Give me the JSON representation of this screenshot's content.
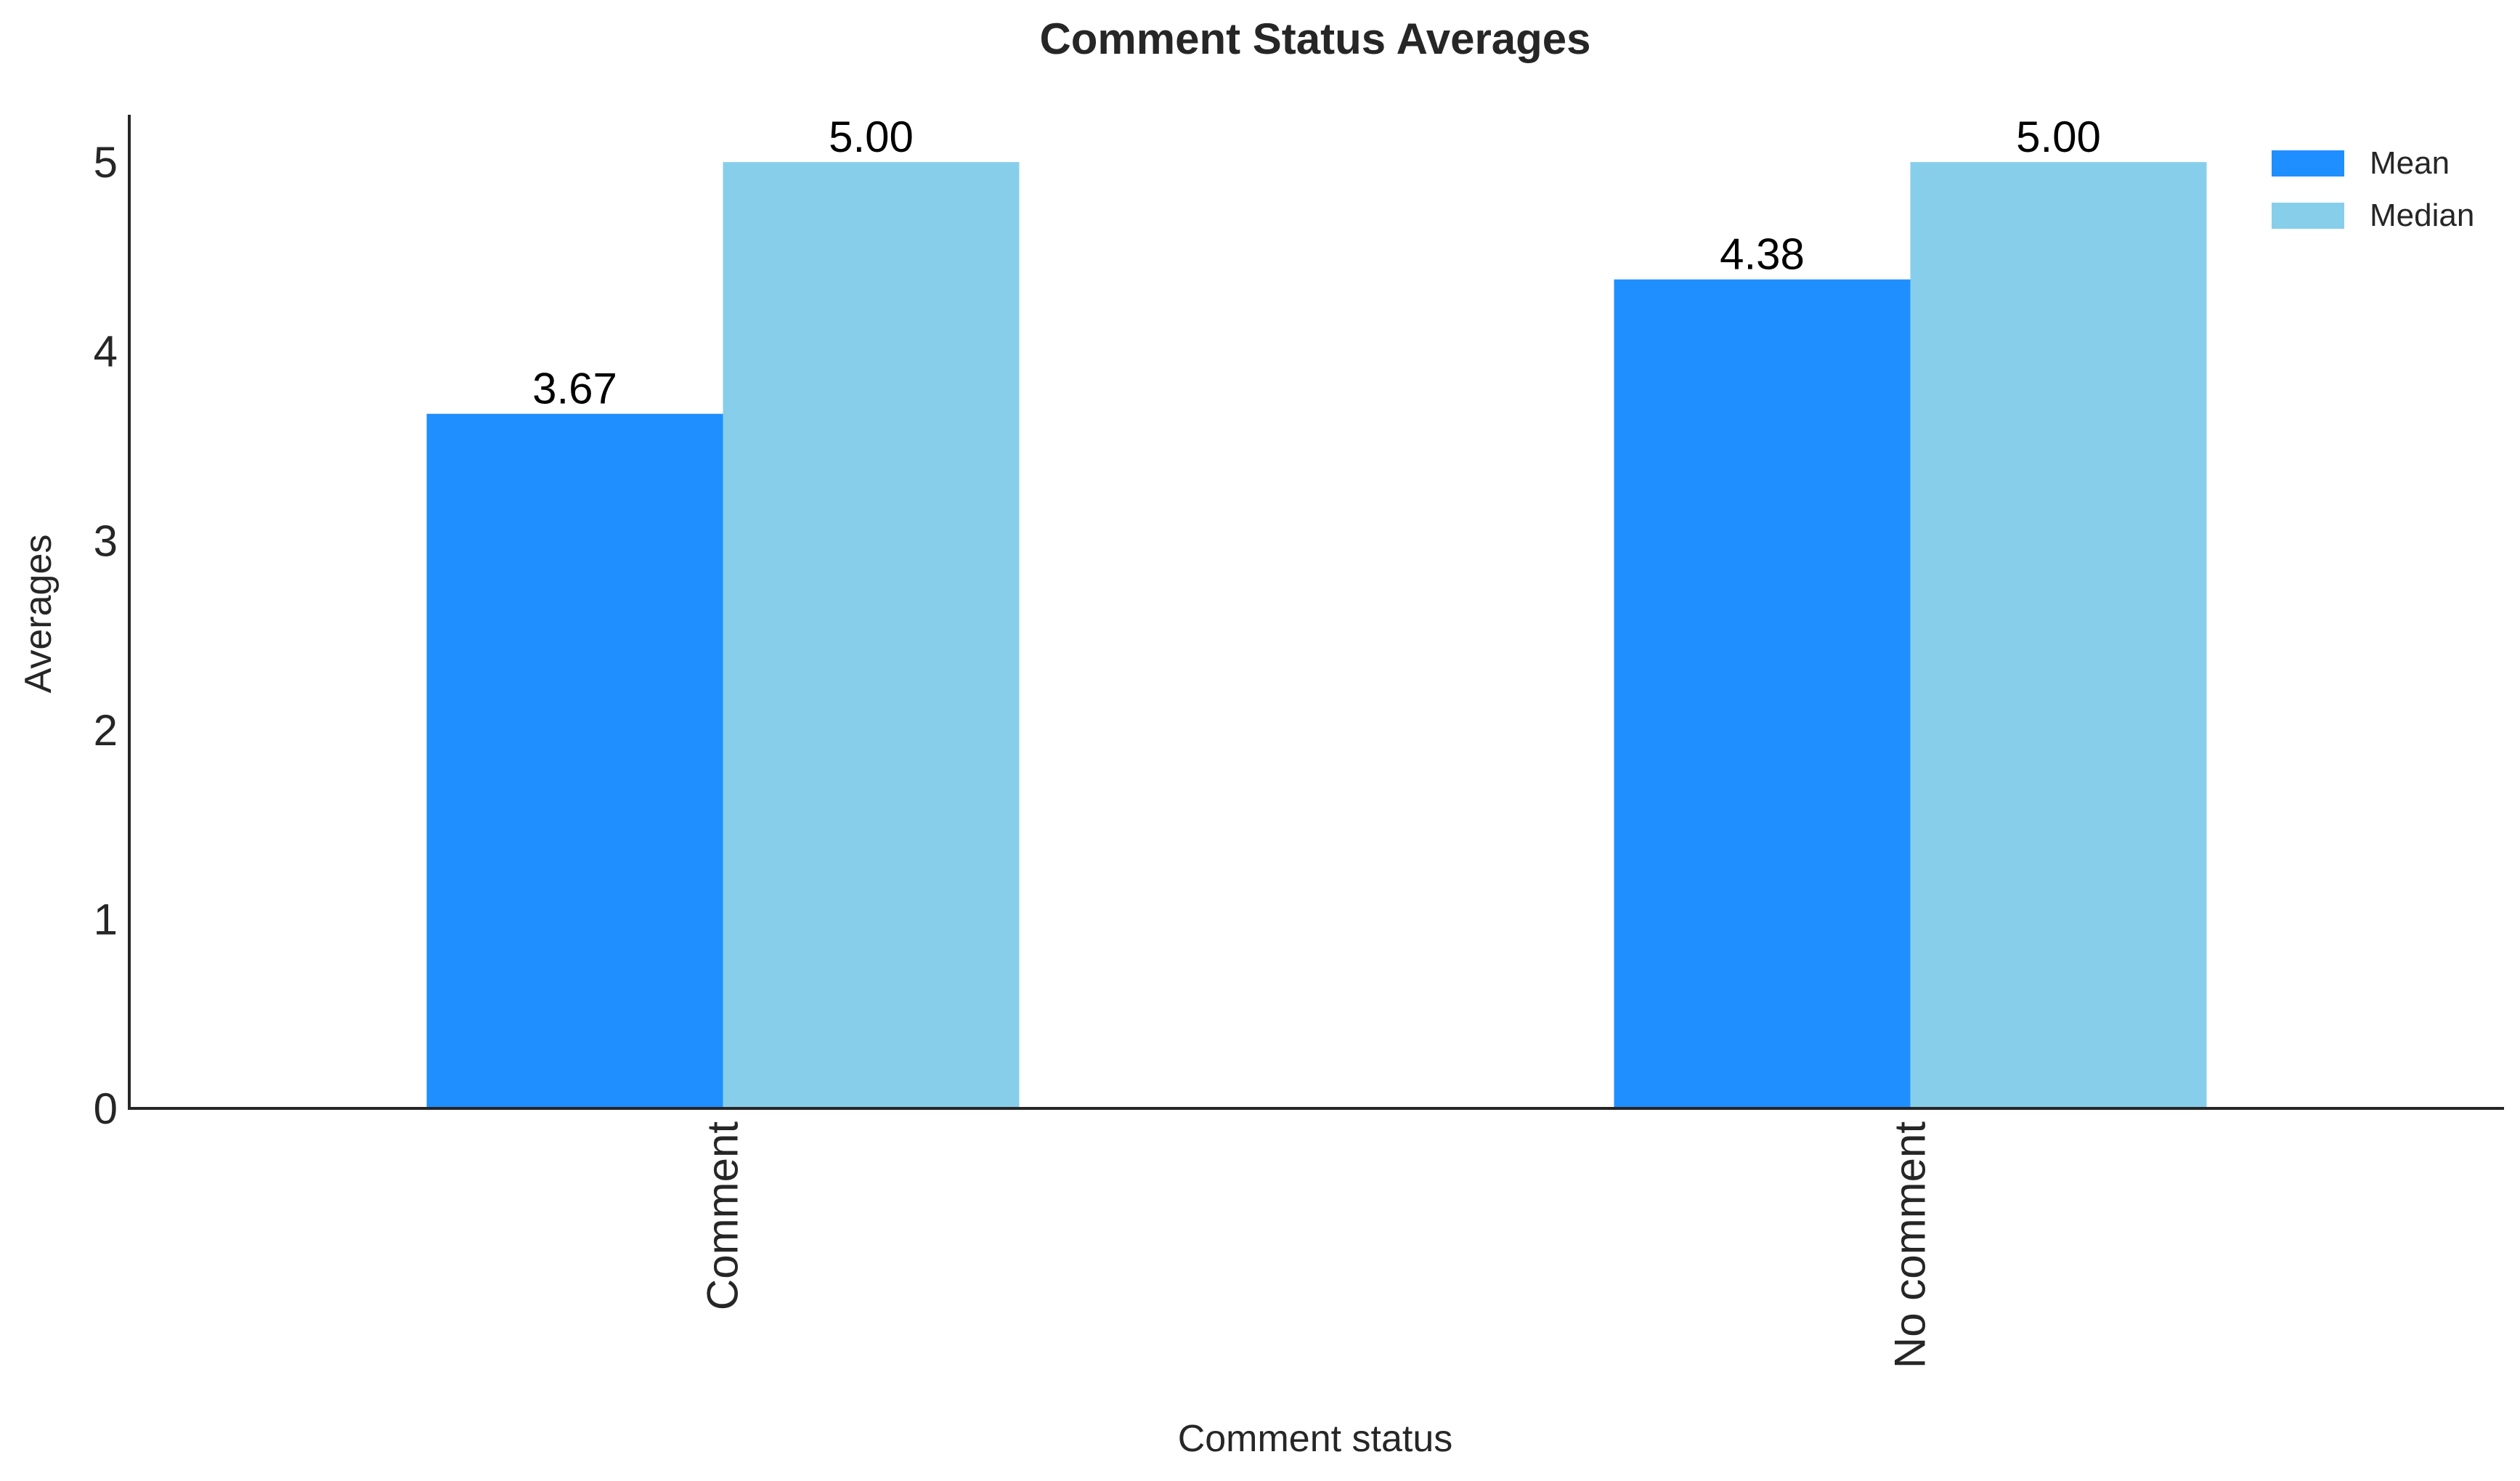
{
  "chart_data": {
    "type": "bar",
    "title": "Comment Status Averages",
    "xlabel": "Comment status",
    "ylabel": "Averages",
    "categories": [
      "Comment",
      "No comment"
    ],
    "series": [
      {
        "name": "Mean",
        "values": [
          3.67,
          4.38
        ],
        "color": "#1f8fff"
      },
      {
        "name": "Median",
        "values": [
          5.0,
          5.0
        ],
        "color": "#87ceeb"
      }
    ],
    "data_labels": [
      [
        "3.67",
        "4.38"
      ],
      [
        "5.00",
        "5.00"
      ]
    ],
    "ylim": [
      0,
      5.25
    ],
    "yticks": [
      0,
      1,
      2,
      3,
      4,
      5
    ],
    "ytick_labels": [
      "0",
      "1",
      "2",
      "3",
      "4",
      "5"
    ],
    "grid": false,
    "legend_position": "top-right",
    "axis_color": "#262626"
  }
}
